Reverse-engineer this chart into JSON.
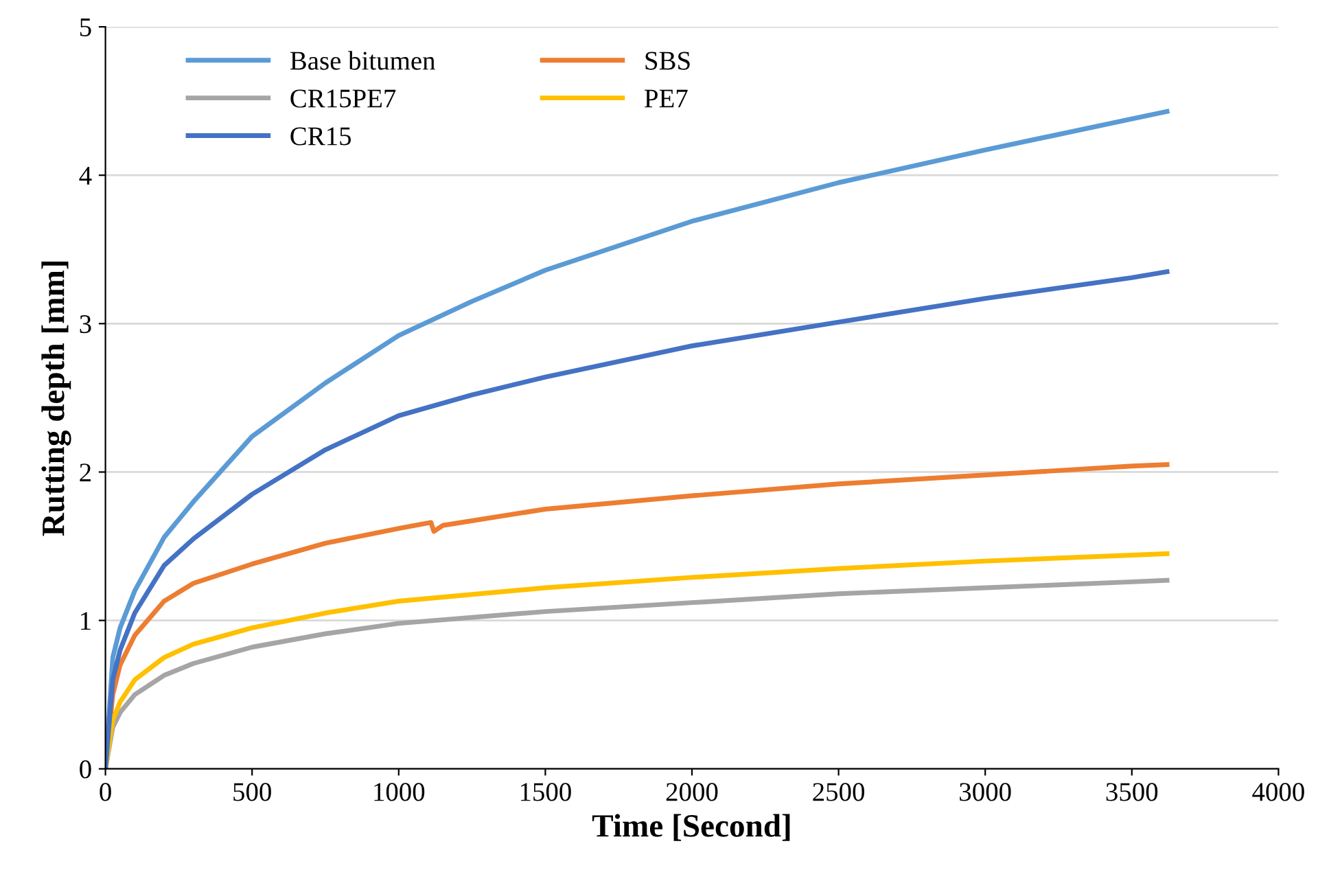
{
  "chart_data": {
    "type": "line",
    "xlabel": "Time [Second]",
    "ylabel": "Rutting depth [mm]",
    "xlim": [
      0,
      4000
    ],
    "xticks": [
      0,
      500,
      1000,
      1500,
      2000,
      2500,
      3000,
      3500,
      4000
    ],
    "ylim": [
      0,
      5
    ],
    "yticks": [
      0,
      1,
      2,
      3,
      4,
      5
    ],
    "grid": "y",
    "legend": "top left",
    "marker": "none",
    "line_style": "solid",
    "series": [
      {
        "name": "Base bitumen",
        "color": "#5b9bd5",
        "x": [
          0,
          25,
          50,
          100,
          200,
          300,
          500,
          750,
          1000,
          1250,
          1500,
          2000,
          2500,
          3000,
          3500,
          3620
        ],
        "values": [
          0,
          0.75,
          0.95,
          1.2,
          1.56,
          1.8,
          2.24,
          2.6,
          2.92,
          3.15,
          3.36,
          3.69,
          3.95,
          4.17,
          4.38,
          4.43
        ]
      },
      {
        "name": "SBS",
        "color": "#ed7d31",
        "x": [
          0,
          25,
          50,
          100,
          200,
          300,
          500,
          750,
          1000,
          1110,
          1120,
          1150,
          1500,
          2000,
          2500,
          3000,
          3500,
          3620
        ],
        "values": [
          0,
          0.5,
          0.7,
          0.9,
          1.13,
          1.25,
          1.38,
          1.52,
          1.62,
          1.66,
          1.6,
          1.64,
          1.75,
          1.84,
          1.92,
          1.98,
          2.04,
          2.05
        ]
      },
      {
        "name": "CR15PE7",
        "color": "#a5a5a5",
        "x": [
          0,
          25,
          50,
          100,
          200,
          300,
          500,
          750,
          1000,
          1500,
          2000,
          2500,
          3000,
          3500,
          3620
        ],
        "values": [
          0,
          0.28,
          0.38,
          0.5,
          0.63,
          0.71,
          0.82,
          0.91,
          0.98,
          1.06,
          1.12,
          1.18,
          1.22,
          1.26,
          1.27
        ]
      },
      {
        "name": "PE7",
        "color": "#ffc000",
        "x": [
          0,
          25,
          50,
          100,
          200,
          300,
          500,
          750,
          1000,
          1500,
          2000,
          2500,
          3000,
          3500,
          3620
        ],
        "values": [
          0,
          0.33,
          0.45,
          0.6,
          0.75,
          0.84,
          0.95,
          1.05,
          1.13,
          1.22,
          1.29,
          1.35,
          1.4,
          1.44,
          1.45
        ]
      },
      {
        "name": "CR15",
        "color": "#4472c4",
        "x": [
          0,
          25,
          50,
          100,
          200,
          300,
          500,
          750,
          1000,
          1250,
          1500,
          2000,
          2500,
          3000,
          3500,
          3620
        ],
        "values": [
          0,
          0.6,
          0.8,
          1.05,
          1.37,
          1.55,
          1.85,
          2.15,
          2.38,
          2.52,
          2.64,
          2.85,
          3.01,
          3.17,
          3.31,
          3.35
        ]
      }
    ]
  }
}
